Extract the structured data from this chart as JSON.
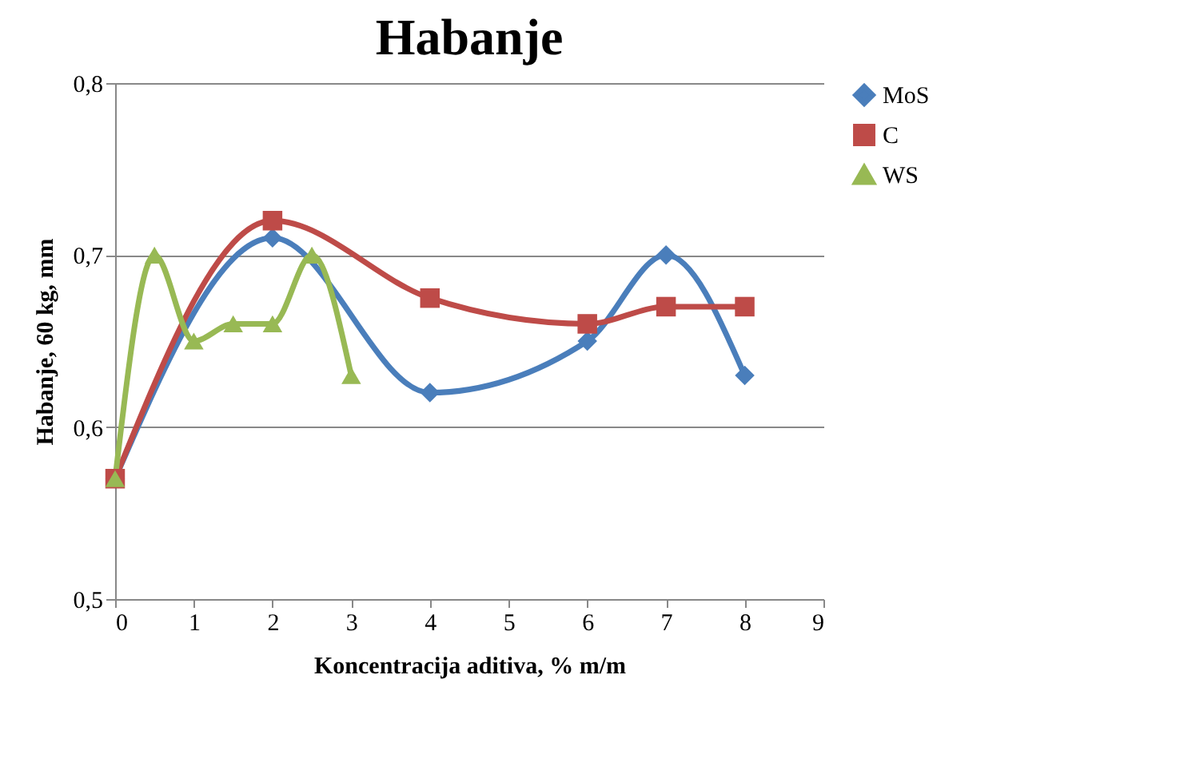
{
  "chart_data": {
    "type": "line",
    "title": "Habanje",
    "xlabel": "Koncentracija aditiva, % m/m",
    "ylabel": "Habanje, 60 kg, mm",
    "xlim": [
      0,
      9
    ],
    "xticks": [
      0,
      1,
      2,
      3,
      4,
      5,
      6,
      7,
      8,
      9
    ],
    "ylim": [
      0.5,
      0.8
    ],
    "yticks": [
      {
        "value": 0.5,
        "label": "0,5"
      },
      {
        "value": 0.6,
        "label": "0,6"
      },
      {
        "value": 0.7,
        "label": "0,7"
      },
      {
        "value": 0.8,
        "label": "0,8"
      }
    ],
    "grid": "y",
    "legend": "right",
    "line_style": "solid",
    "series": [
      {
        "name": "MoS",
        "color": "#4a7ebb",
        "marker": "diamond",
        "x": [
          0,
          2,
          4,
          6,
          7,
          8
        ],
        "values": [
          0.57,
          0.71,
          0.62,
          0.65,
          0.7,
          0.63
        ]
      },
      {
        "name": "C",
        "color": "#be4b48",
        "marker": "square",
        "x": [
          0,
          2,
          4,
          6,
          7,
          8
        ],
        "values": [
          0.57,
          0.72,
          0.675,
          0.66,
          0.67,
          0.67
        ]
      },
      {
        "name": "WS",
        "color": "#98b954",
        "marker": "triangle",
        "x": [
          0,
          0.5,
          1,
          1.5,
          2,
          2.5,
          3
        ],
        "values": [
          0.57,
          0.7,
          0.65,
          0.66,
          0.66,
          0.7,
          0.63
        ]
      }
    ]
  }
}
